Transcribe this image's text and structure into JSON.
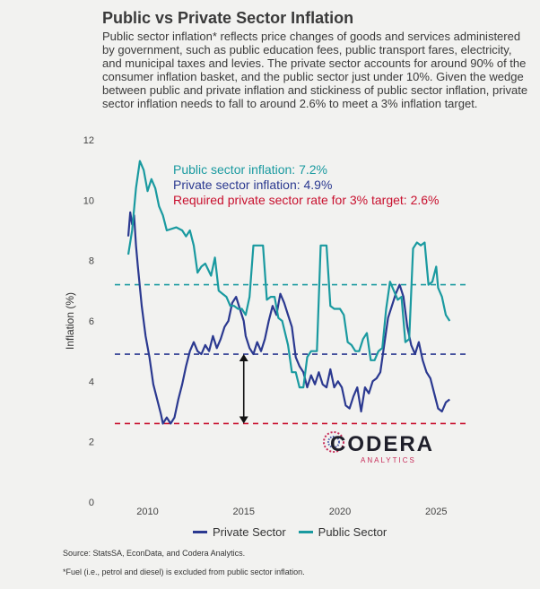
{
  "title": "Public vs Private Sector Inflation",
  "subtitle": "Public sector inflation* reflects price changes of goods and services administered by government, such as public education fees, public transport fares, electricity, and municipal taxes and levies. The private sector accounts for around 90% of the consumer inflation basket, and the public sector just under 10%. Given the wedge between public and private inflation and stickiness of public sector inflation, private sector inflation needs to fall to around 2.6% to meet a 3% inflation target.",
  "annotations": {
    "public": "Public sector inflation: 7.2%",
    "private": "Private sector inflation: 4.9%",
    "required": "Required private sector rate for 3% target: 2.6%"
  },
  "logo": {
    "main": "CODERA",
    "sub": "ANALYTICS"
  },
  "legend": {
    "private": "Private Sector",
    "public": "Public Sector"
  },
  "source": "Source: StatsSA, EconData, and Codera Analytics.",
  "footnote": "*Fuel (i.e., petrol and diesel) is excluded from public sector inflation.",
  "colors": {
    "private": "#2b3990",
    "public": "#1a9aa0",
    "required": "#c8102e",
    "arrow": "#111111"
  },
  "chart_data": {
    "type": "line",
    "ylabel": "Inflation (%)",
    "xlabel": "",
    "ylim": [
      0,
      12
    ],
    "xlim": [
      2008.3,
      2026.2
    ],
    "yticks": [
      0,
      2,
      4,
      6,
      8,
      10,
      12
    ],
    "xticks": [
      2010,
      2015,
      2020,
      2025
    ],
    "grid": false,
    "legend_position": "bottom",
    "reference_lines": [
      {
        "label": "Public sector inflation: 7.2%",
        "value": 7.2,
        "color": "#1a9aa0",
        "style": "dashed"
      },
      {
        "label": "Private sector inflation: 4.9%",
        "value": 4.9,
        "color": "#2b3990",
        "style": "dashed"
      },
      {
        "label": "Required private sector rate for 3% target: 2.6%",
        "value": 2.6,
        "color": "#c8102e",
        "style": "dashed"
      }
    ],
    "gap_arrow": {
      "x": 2015,
      "from": 4.9,
      "to": 2.6
    },
    "series": [
      {
        "name": "Private Sector",
        "color": "#2b3990",
        "points": [
          [
            2009.0,
            8.8
          ],
          [
            2009.1,
            9.6
          ],
          [
            2009.2,
            9.2
          ],
          [
            2009.3,
            9.5
          ],
          [
            2009.4,
            8.5
          ],
          [
            2009.5,
            7.8
          ],
          [
            2009.7,
            6.5
          ],
          [
            2009.9,
            5.5
          ],
          [
            2010.1,
            4.8
          ],
          [
            2010.3,
            3.9
          ],
          [
            2010.5,
            3.4
          ],
          [
            2010.7,
            2.9
          ],
          [
            2010.8,
            2.6
          ],
          [
            2011.0,
            2.8
          ],
          [
            2011.2,
            2.6
          ],
          [
            2011.4,
            2.8
          ],
          [
            2011.6,
            3.4
          ],
          [
            2011.8,
            3.9
          ],
          [
            2012.0,
            4.5
          ],
          [
            2012.2,
            5.0
          ],
          [
            2012.4,
            5.3
          ],
          [
            2012.6,
            5.0
          ],
          [
            2012.8,
            4.9
          ],
          [
            2013.0,
            5.2
          ],
          [
            2013.2,
            5.0
          ],
          [
            2013.4,
            5.5
          ],
          [
            2013.6,
            5.1
          ],
          [
            2013.8,
            5.4
          ],
          [
            2014.0,
            5.8
          ],
          [
            2014.2,
            6.0
          ],
          [
            2014.4,
            6.6
          ],
          [
            2014.6,
            6.8
          ],
          [
            2014.8,
            6.4
          ],
          [
            2015.0,
            6.0
          ],
          [
            2015.1,
            5.5
          ],
          [
            2015.3,
            5.1
          ],
          [
            2015.5,
            4.9
          ],
          [
            2015.7,
            5.3
          ],
          [
            2015.9,
            5.0
          ],
          [
            2016.1,
            5.4
          ],
          [
            2016.3,
            6.0
          ],
          [
            2016.5,
            6.5
          ],
          [
            2016.7,
            6.2
          ],
          [
            2016.9,
            6.9
          ],
          [
            2017.1,
            6.6
          ],
          [
            2017.3,
            6.2
          ],
          [
            2017.5,
            5.8
          ],
          [
            2017.7,
            4.8
          ],
          [
            2017.9,
            4.5
          ],
          [
            2018.1,
            4.3
          ],
          [
            2018.3,
            3.8
          ],
          [
            2018.5,
            4.2
          ],
          [
            2018.7,
            3.9
          ],
          [
            2018.9,
            4.3
          ],
          [
            2019.1,
            3.9
          ],
          [
            2019.3,
            3.8
          ],
          [
            2019.5,
            4.4
          ],
          [
            2019.7,
            3.8
          ],
          [
            2019.9,
            4.0
          ],
          [
            2020.1,
            3.8
          ],
          [
            2020.3,
            3.2
          ],
          [
            2020.5,
            3.1
          ],
          [
            2020.7,
            3.5
          ],
          [
            2020.9,
            3.8
          ],
          [
            2021.1,
            3.0
          ],
          [
            2021.3,
            3.8
          ],
          [
            2021.5,
            3.6
          ],
          [
            2021.7,
            4.0
          ],
          [
            2021.9,
            4.1
          ],
          [
            2022.1,
            4.3
          ],
          [
            2022.3,
            5.2
          ],
          [
            2022.5,
            6.1
          ],
          [
            2022.7,
            6.5
          ],
          [
            2022.9,
            6.9
          ],
          [
            2023.1,
            7.2
          ],
          [
            2023.3,
            6.8
          ],
          [
            2023.5,
            5.8
          ],
          [
            2023.7,
            5.2
          ],
          [
            2023.9,
            4.9
          ],
          [
            2024.1,
            5.3
          ],
          [
            2024.3,
            4.7
          ],
          [
            2024.5,
            4.3
          ],
          [
            2024.7,
            4.1
          ],
          [
            2024.9,
            3.6
          ],
          [
            2025.1,
            3.1
          ],
          [
            2025.3,
            3.0
          ],
          [
            2025.5,
            3.3
          ],
          [
            2025.7,
            3.4
          ]
        ]
      },
      {
        "name": "Public Sector",
        "color": "#1a9aa0",
        "points": [
          [
            2009.0,
            8.2
          ],
          [
            2009.2,
            9.0
          ],
          [
            2009.4,
            10.4
          ],
          [
            2009.6,
            11.3
          ],
          [
            2009.8,
            11.0
          ],
          [
            2010.0,
            10.3
          ],
          [
            2010.2,
            10.7
          ],
          [
            2010.4,
            10.4
          ],
          [
            2010.6,
            9.8
          ],
          [
            2010.8,
            9.5
          ],
          [
            2011.0,
            9.0
          ],
          [
            2011.5,
            9.1
          ],
          [
            2011.8,
            9.0
          ],
          [
            2012.0,
            8.8
          ],
          [
            2012.2,
            9.0
          ],
          [
            2012.4,
            8.5
          ],
          [
            2012.6,
            7.6
          ],
          [
            2012.8,
            7.8
          ],
          [
            2013.0,
            7.9
          ],
          [
            2013.3,
            7.5
          ],
          [
            2013.5,
            8.1
          ],
          [
            2013.7,
            7.0
          ],
          [
            2013.9,
            6.9
          ],
          [
            2014.1,
            6.8
          ],
          [
            2014.3,
            6.5
          ],
          [
            2014.5,
            6.5
          ],
          [
            2014.7,
            6.4
          ],
          [
            2014.9,
            6.4
          ],
          [
            2015.1,
            6.2
          ],
          [
            2015.3,
            6.8
          ],
          [
            2015.5,
            8.5
          ],
          [
            2015.7,
            8.5
          ],
          [
            2016.0,
            8.5
          ],
          [
            2016.2,
            6.7
          ],
          [
            2016.4,
            6.8
          ],
          [
            2016.6,
            6.8
          ],
          [
            2016.8,
            6.1
          ],
          [
            2017.0,
            6.0
          ],
          [
            2017.3,
            5.2
          ],
          [
            2017.5,
            4.3
          ],
          [
            2017.7,
            4.3
          ],
          [
            2017.9,
            3.8
          ],
          [
            2018.1,
            3.8
          ],
          [
            2018.3,
            4.8
          ],
          [
            2018.5,
            5.0
          ],
          [
            2018.8,
            5.0
          ],
          [
            2019.0,
            8.5
          ],
          [
            2019.3,
            8.5
          ],
          [
            2019.5,
            6.5
          ],
          [
            2019.7,
            6.4
          ],
          [
            2020.0,
            6.4
          ],
          [
            2020.2,
            6.2
          ],
          [
            2020.4,
            5.3
          ],
          [
            2020.6,
            5.2
          ],
          [
            2020.8,
            5.0
          ],
          [
            2021.0,
            5.0
          ],
          [
            2021.2,
            5.4
          ],
          [
            2021.4,
            5.6
          ],
          [
            2021.6,
            4.7
          ],
          [
            2021.8,
            4.7
          ],
          [
            2022.0,
            5.0
          ],
          [
            2022.2,
            5.1
          ],
          [
            2022.4,
            6.4
          ],
          [
            2022.6,
            7.3
          ],
          [
            2022.8,
            7.0
          ],
          [
            2023.0,
            6.7
          ],
          [
            2023.2,
            6.8
          ],
          [
            2023.4,
            5.3
          ],
          [
            2023.6,
            5.4
          ],
          [
            2023.8,
            8.4
          ],
          [
            2024.0,
            8.6
          ],
          [
            2024.2,
            8.5
          ],
          [
            2024.4,
            8.6
          ],
          [
            2024.6,
            7.2
          ],
          [
            2024.8,
            7.3
          ],
          [
            2025.0,
            7.8
          ],
          [
            2025.1,
            7.1
          ],
          [
            2025.3,
            6.8
          ],
          [
            2025.5,
            6.2
          ],
          [
            2025.7,
            6.0
          ]
        ]
      }
    ]
  }
}
